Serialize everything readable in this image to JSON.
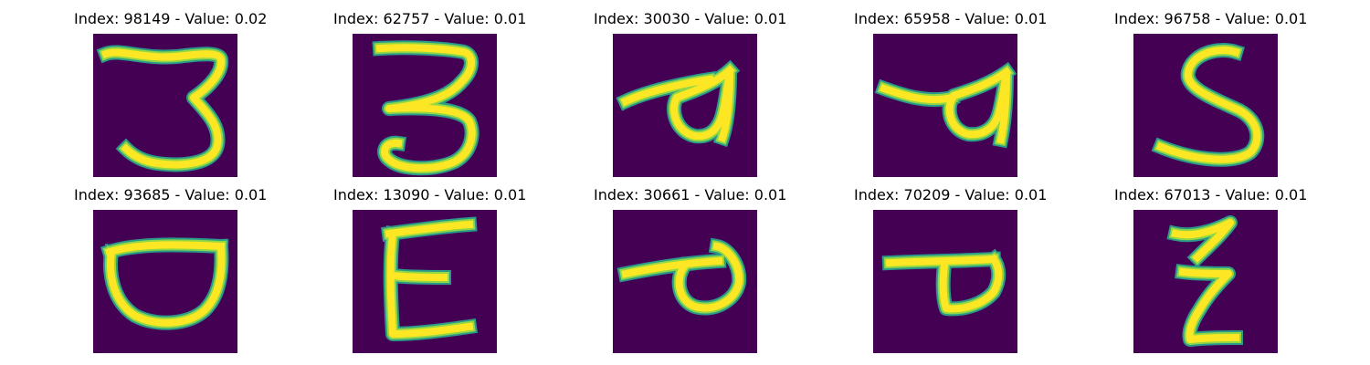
{
  "colors": {
    "background": "#440154",
    "stroke_outer": "#2a9a8a",
    "stroke_mid": "#8fd744",
    "stroke_core": "#fde725"
  },
  "panels": [
    {
      "title": "Index: 98149 - Value: 0.02",
      "glyph": "digit-3-icon"
    },
    {
      "title": "Index: 62757 - Value: 0.01",
      "glyph": "digit-3-icon"
    },
    {
      "title": "Index: 30030 - Value: 0.01",
      "glyph": "handwritten-a-icon"
    },
    {
      "title": "Index: 65958 - Value: 0.01",
      "glyph": "handwritten-a-icon"
    },
    {
      "title": "Index: 96758 - Value: 0.01",
      "glyph": "letter-s-icon"
    },
    {
      "title": "Index: 93685 - Value: 0.01",
      "glyph": "letter-d-icon"
    },
    {
      "title": "Index: 13090 - Value: 0.01",
      "glyph": "letter-e-icon"
    },
    {
      "title": "Index: 30661 - Value: 0.01",
      "glyph": "handwritten-loop-icon"
    },
    {
      "title": "Index: 70209 - Value: 0.01",
      "glyph": "letter-p-icon"
    },
    {
      "title": "Index: 67013 - Value: 0.01",
      "glyph": "letter-z-icon"
    }
  ]
}
